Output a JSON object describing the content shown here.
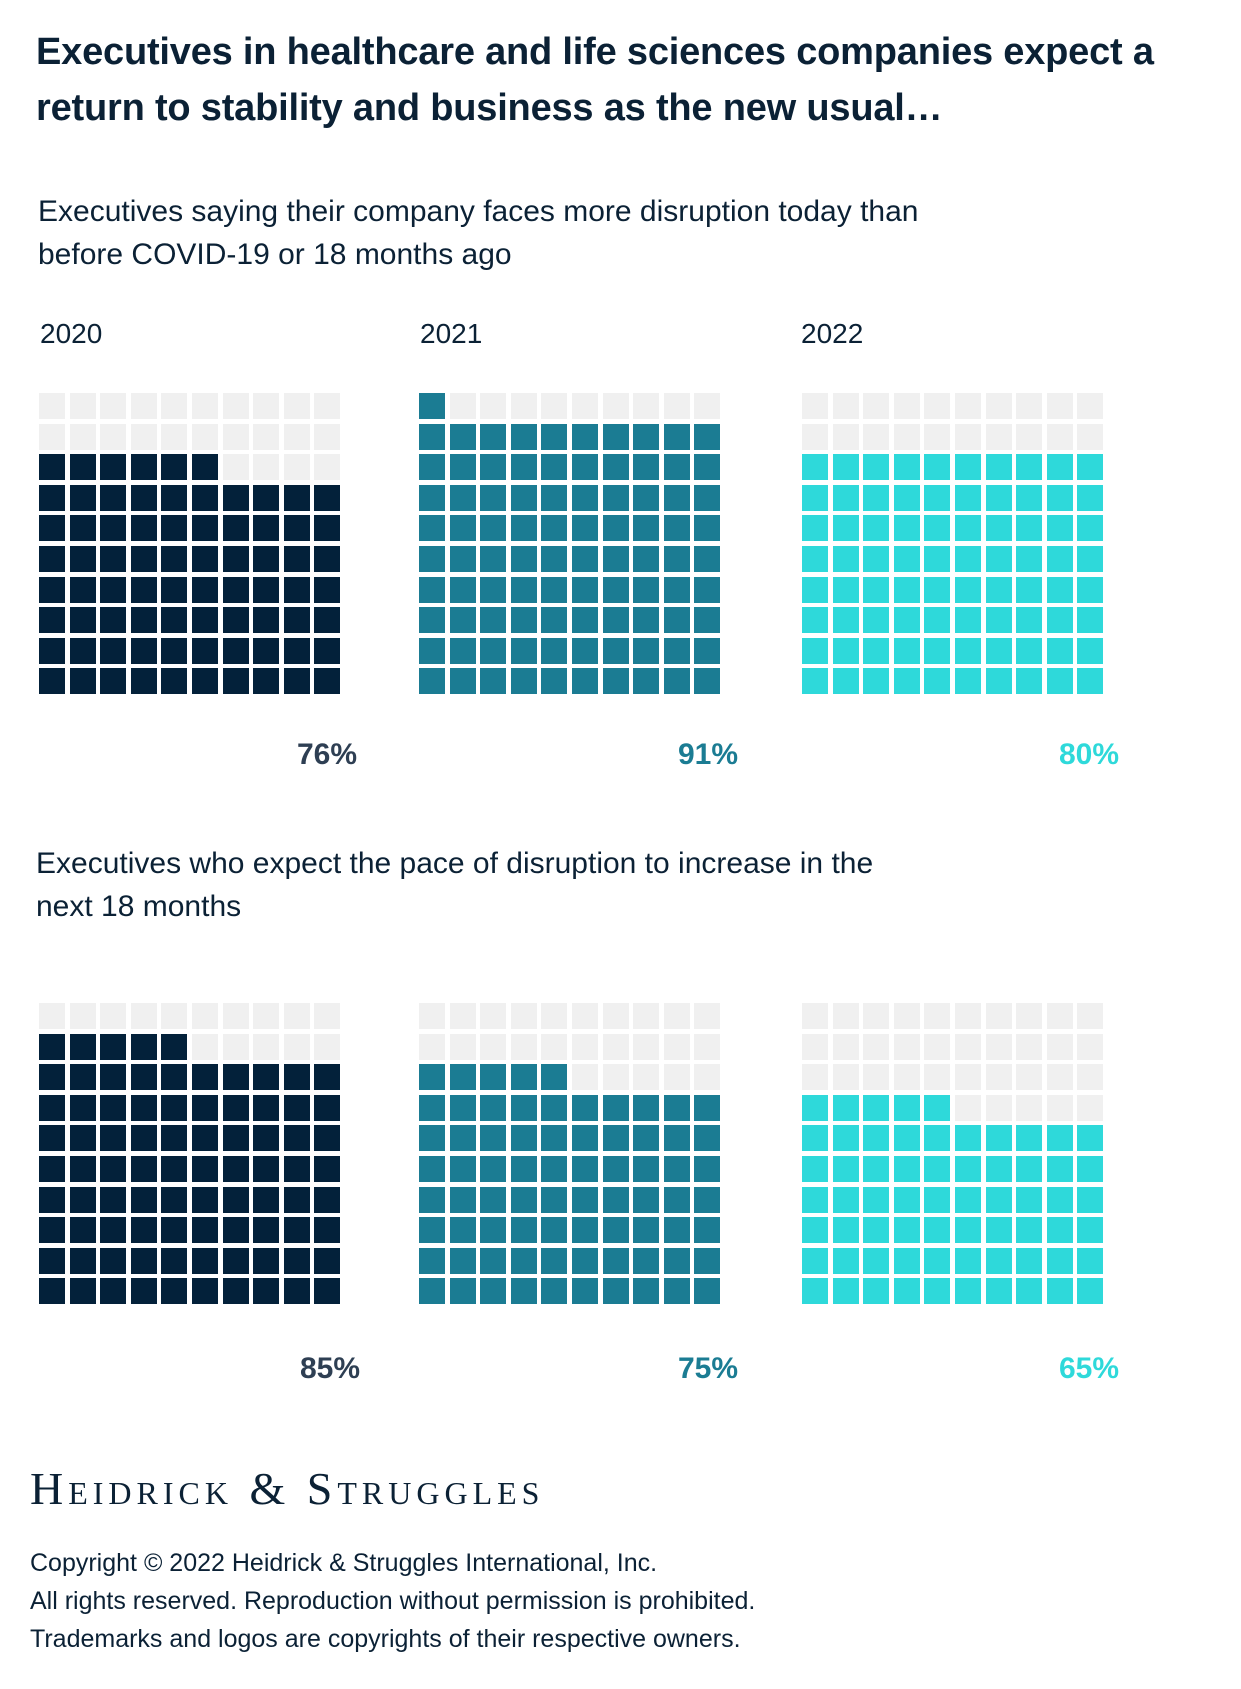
{
  "title": "Executives in healthcare and life sciences companies expect a return to stability and business as the new usual…",
  "logo_text": "Heidrick & Struggles",
  "copyright": [
    "Copyright © 2022 Heidrick & Struggles International, Inc.",
    "All rights reserved. Reproduction without permission is prohibited.",
    "Trademarks and logos are copyrights of their respective owners."
  ],
  "colors": {
    "empty": "#f0f0f0",
    "2020": "#03213a",
    "2021": "#1b7c93",
    "2022": "#2ed9da",
    "label_2020": "#2e3f53"
  },
  "chart_data": [
    {
      "type": "waffle",
      "title": "Executives saying their company faces more disruption today than before COVID-19 or 18 months ago",
      "grid": [
        10,
        10
      ],
      "categories": [
        "2020",
        "2021",
        "2022"
      ],
      "values": [
        76,
        91,
        80
      ],
      "labels": [
        "76%",
        "91%",
        "80%"
      ]
    },
    {
      "type": "waffle",
      "title": "Executives who expect the pace of disruption to increase in the next 18 months",
      "grid": [
        10,
        10
      ],
      "categories": [
        "2020",
        "2021",
        "2022"
      ],
      "values": [
        85,
        75,
        65
      ],
      "labels": [
        "85%",
        "75%",
        "65%"
      ]
    }
  ]
}
